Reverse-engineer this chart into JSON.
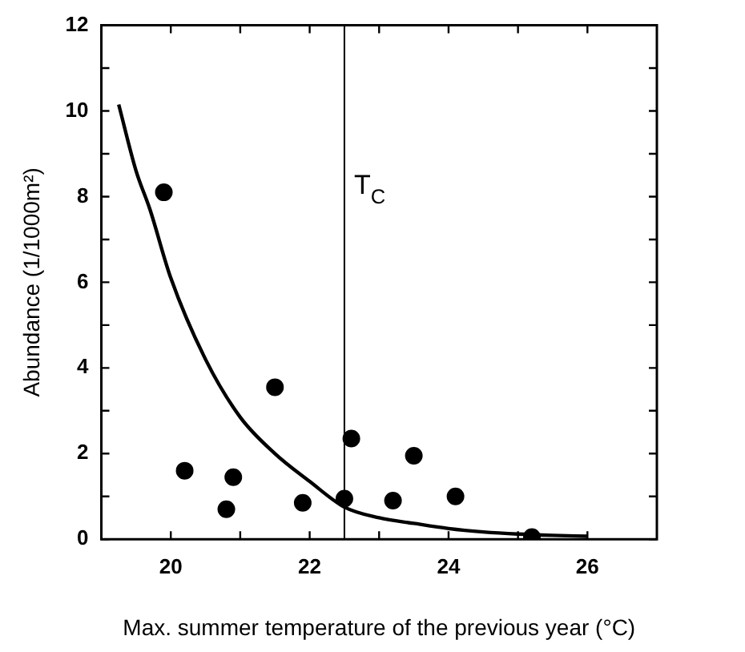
{
  "chart_data": {
    "type": "scatter",
    "xlabel": "Max. summer temperature of the previous year (°C)",
    "ylabel": "Abundance (1/1000m²)",
    "xlim": [
      19,
      27
    ],
    "xticks": [
      20,
      {
        "value": 21,
        "label": null
      },
      22,
      {
        "value": 23,
        "label": null
      },
      24,
      {
        "value": 25,
        "label": null
      },
      26
    ],
    "ylim": [
      0,
      12
    ],
    "yticks": [
      0,
      {
        "value": 1,
        "label": null
      },
      2,
      {
        "value": 3,
        "label": null
      },
      4,
      {
        "value": 5,
        "label": null
      },
      6,
      {
        "value": 7,
        "label": null
      },
      8,
      {
        "value": 9,
        "label": null
      },
      10,
      {
        "value": 11,
        "label": null
      },
      12
    ],
    "grid": false,
    "legend": false,
    "series": [
      {
        "marker": "circle",
        "color": "#000000",
        "x": [
          19.9,
          20.2,
          20.8,
          20.9,
          21.5,
          21.9,
          22.5,
          22.6,
          23.2,
          23.5,
          24.1,
          25.2
        ],
        "values": [
          8.1,
          1.6,
          0.7,
          1.45,
          3.55,
          0.85,
          0.95,
          2.35,
          0.9,
          1.95,
          1.0,
          0.05
        ]
      },
      {
        "type": "line",
        "marker": "none",
        "line_style": "solid",
        "color": "#000000",
        "x": [
          19.25,
          19.5,
          19.7,
          20.0,
          20.5,
          21.0,
          21.5,
          22.0,
          22.5,
          23.0,
          23.5,
          24.0,
          24.5,
          25.0,
          25.5,
          26.0
        ],
        "values": [
          10.15,
          8.6,
          7.7,
          6.1,
          4.2,
          2.85,
          2.0,
          1.35,
          0.75,
          0.5,
          0.37,
          0.25,
          0.17,
          0.12,
          0.09,
          0.07
        ]
      }
    ],
    "ref_lines": [
      {
        "axis": "x",
        "value": 22.5,
        "label": "T$_{C}$",
        "color": "#000000",
        "line_style": "solid"
      }
    ]
  }
}
